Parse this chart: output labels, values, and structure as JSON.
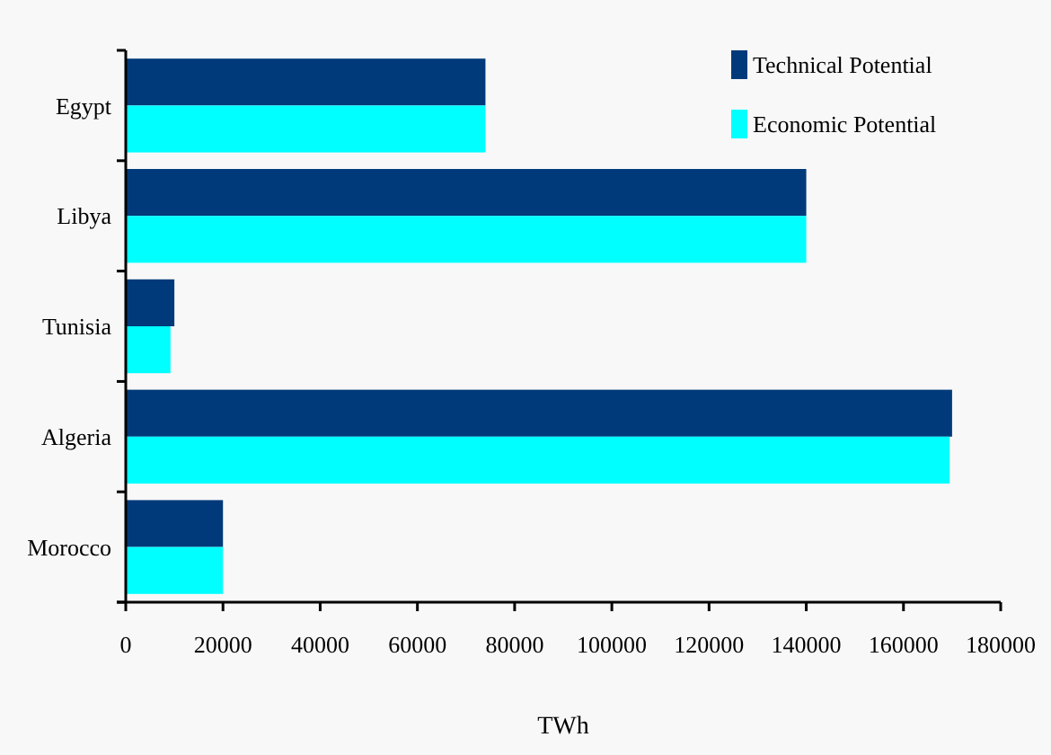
{
  "chart_data": {
    "type": "bar",
    "orientation": "horizontal",
    "xlabel": "TWh",
    "categories": [
      "Egypt",
      "Libya",
      "Tunisia",
      "Algeria",
      "Morocco"
    ],
    "series": [
      {
        "name": "Technical Potential",
        "color": "#003a7a",
        "values": [
          74000,
          140000,
          10000,
          170000,
          20000
        ]
      },
      {
        "name": "Economic Potential",
        "color": "#00ffff",
        "values": [
          74000,
          140000,
          9200,
          169500,
          20000
        ]
      }
    ],
    "xlim": [
      0,
      180000
    ],
    "xticks": [
      0,
      20000,
      40000,
      60000,
      80000,
      100000,
      120000,
      140000,
      160000,
      180000
    ],
    "grid": false,
    "legend": "top right"
  }
}
